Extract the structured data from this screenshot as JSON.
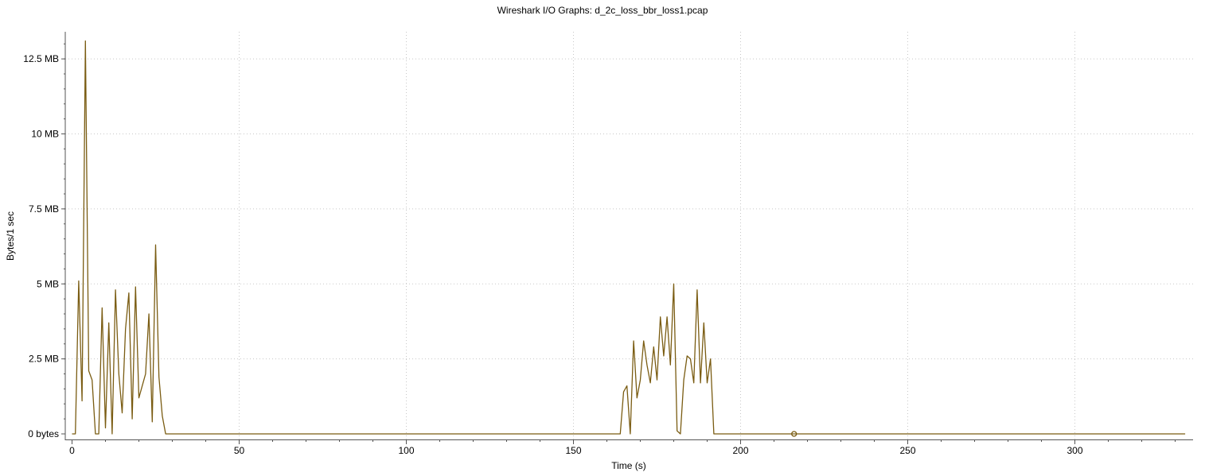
{
  "chart_data": {
    "type": "line",
    "title": "Wireshark I/O Graphs: d_2c_loss_bbr_loss1.pcap",
    "xlabel": "Time (s)",
    "ylabel": "Bytes/1 sec",
    "xlim": [
      -1,
      334
    ],
    "ylim": [
      -200000,
      13300000
    ],
    "x_ticks": [
      0,
      50,
      100,
      150,
      200,
      250,
      300
    ],
    "x_tick_labels": [
      "0",
      "50",
      "100",
      "150",
      "200",
      "250",
      "300"
    ],
    "y_ticks": [
      0,
      2500000,
      5000000,
      7500000,
      10000000,
      12500000
    ],
    "y_tick_labels": [
      "0 bytes",
      "2.5 MB",
      "5 MB",
      "7.5 MB",
      "10 MB",
      "12.5 MB"
    ],
    "grid": true,
    "colors": {
      "line": "#7a5c12",
      "grid": "#c8c8c8",
      "axis": "#555555"
    },
    "series": [
      {
        "color": "#7a5c12",
        "x": [
          0,
          1,
          2,
          3,
          4,
          5,
          6,
          7,
          8,
          9,
          10,
          11,
          12,
          13,
          14,
          15,
          16,
          17,
          18,
          19,
          20,
          21,
          22,
          23,
          24,
          25,
          26,
          27,
          28,
          163,
          164,
          165,
          166,
          167,
          168,
          169,
          170,
          171,
          172,
          173,
          174,
          175,
          176,
          177,
          178,
          179,
          180,
          181,
          182,
          183,
          184,
          185,
          186,
          187,
          188,
          189,
          190,
          191,
          192,
          333
        ],
        "y": [
          0,
          0,
          5100000,
          1100000,
          13100000,
          2100000,
          1800000,
          0,
          0,
          4200000,
          200000,
          3700000,
          0,
          4800000,
          2000000,
          700000,
          3500000,
          4700000,
          500000,
          4900000,
          1200000,
          1600000,
          2000000,
          4000000,
          400000,
          6300000,
          1900000,
          600000,
          0,
          0,
          0,
          1400000,
          1600000,
          0,
          3100000,
          1200000,
          1800000,
          3100000,
          2300000,
          1700000,
          2900000,
          1800000,
          3900000,
          2600000,
          3900000,
          2300000,
          5000000,
          100000,
          0,
          1800000,
          2600000,
          2500000,
          1700000,
          4800000,
          1700000,
          3700000,
          1700000,
          2500000,
          0,
          0
        ]
      }
    ],
    "marker": {
      "x": 216,
      "y": 0
    }
  }
}
